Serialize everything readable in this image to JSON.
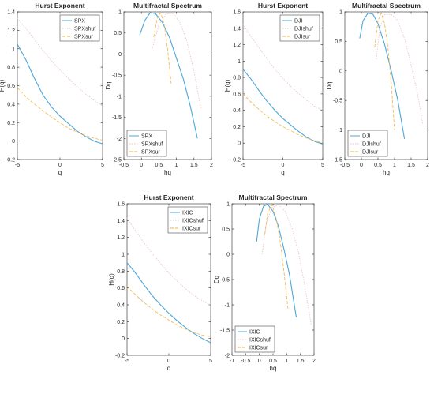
{
  "chart_data": [
    {
      "type": "line",
      "title": "Hurst Exponent",
      "xlabel": "q",
      "ylabel": "H(q)",
      "xlim": [
        -5,
        5
      ],
      "ylim": [
        -0.2,
        1.4
      ],
      "xticks": [
        "-5",
        "0",
        "5"
      ],
      "yticks": [
        "-0.2",
        "0",
        "0.2",
        "0.4",
        "0.6",
        "0.8",
        "1",
        "1.2",
        "1.4"
      ],
      "legend": "top-right",
      "series": [
        {
          "name": "SPX",
          "color": "#4da6d9",
          "x": [
            -5,
            -4,
            -3,
            -2,
            -1,
            0,
            1,
            2,
            3,
            4,
            5
          ],
          "y": [
            1.05,
            0.88,
            0.68,
            0.5,
            0.37,
            0.27,
            0.19,
            0.11,
            0.05,
            0.0,
            -0.03
          ]
        },
        {
          "name": "SPXshuf",
          "color": "#e8c0c0",
          "x": [
            -5,
            -4,
            -3,
            -2,
            -1,
            0,
            1,
            2,
            3,
            4,
            5
          ],
          "y": [
            1.33,
            1.22,
            1.1,
            0.98,
            0.87,
            0.77,
            0.68,
            0.59,
            0.51,
            0.44,
            0.38
          ]
        },
        {
          "name": "SPXsur",
          "color": "#f5b342",
          "x": [
            -5,
            -4,
            -3,
            -2,
            -1,
            0,
            1,
            2,
            3,
            4,
            5
          ],
          "y": [
            0.58,
            0.48,
            0.4,
            0.33,
            0.26,
            0.2,
            0.14,
            0.1,
            0.06,
            0.03,
            0.01
          ]
        }
      ]
    },
    {
      "type": "line",
      "title": "Multifractal Spectrum",
      "xlabel": "hq",
      "ylabel": "Dq",
      "xlim": [
        -0.5,
        2
      ],
      "ylim": [
        -2.5,
        1
      ],
      "xticks": [
        "-0.5",
        "0",
        "0.5",
        "1",
        "1.5",
        "2"
      ],
      "yticks": [
        "-2.5",
        "-2",
        "-1.5",
        "-1",
        "-0.5",
        "0",
        "0.5",
        "1"
      ],
      "legend": "bottom-left",
      "series": [
        {
          "name": "SPX",
          "color": "#4da6d9",
          "x": [
            -0.05,
            0.1,
            0.25,
            0.4,
            0.6,
            0.8,
            1.0,
            1.2,
            1.4,
            1.6
          ],
          "y": [
            0.45,
            0.8,
            0.98,
            0.96,
            0.75,
            0.4,
            -0.1,
            -0.6,
            -1.25,
            -2.0
          ]
        },
        {
          "name": "SPXshuf",
          "color": "#e8c0c0",
          "x": [
            0.3,
            0.5,
            0.7,
            0.9,
            1.1,
            1.3,
            1.5,
            1.7
          ],
          "y": [
            0.1,
            0.7,
            0.95,
            0.96,
            0.75,
            0.3,
            -0.4,
            -1.3
          ]
        },
        {
          "name": "SPXsur",
          "color": "#f5b342",
          "x": [
            0.35,
            0.45,
            0.55,
            0.65,
            0.75,
            0.85
          ],
          "y": [
            0.4,
            0.85,
            0.98,
            0.7,
            0.1,
            -0.7
          ]
        }
      ]
    },
    {
      "type": "line",
      "title": "Hurst Exponent",
      "xlabel": "q",
      "ylabel": "H(q)",
      "xlim": [
        -5,
        5
      ],
      "ylim": [
        -0.2,
        1.6
      ],
      "xticks": [
        "-5",
        "0",
        "5"
      ],
      "yticks": [
        "-0.2",
        "0",
        "0.2",
        "0.4",
        "0.6",
        "0.8",
        "1",
        "1.2",
        "1.4",
        "1.6"
      ],
      "legend": "top-right",
      "series": [
        {
          "name": "DJI",
          "color": "#4da6d9",
          "x": [
            -5,
            -4,
            -3,
            -2,
            -1,
            0,
            1,
            2,
            3,
            4,
            5
          ],
          "y": [
            0.9,
            0.78,
            0.64,
            0.51,
            0.4,
            0.3,
            0.22,
            0.14,
            0.07,
            0.02,
            -0.01
          ]
        },
        {
          "name": "DJIshuf",
          "color": "#e8c0c0",
          "x": [
            -5,
            -4,
            -3,
            -2,
            -1,
            0,
            1,
            2,
            3,
            4,
            5
          ],
          "y": [
            1.45,
            1.3,
            1.16,
            1.03,
            0.9,
            0.79,
            0.69,
            0.6,
            0.52,
            0.45,
            0.4
          ]
        },
        {
          "name": "DJIsur",
          "color": "#f5b342",
          "x": [
            -5,
            -4,
            -3,
            -2,
            -1,
            0,
            1,
            2,
            3,
            4,
            5
          ],
          "y": [
            0.6,
            0.5,
            0.41,
            0.33,
            0.26,
            0.2,
            0.15,
            0.1,
            0.06,
            0.03,
            0.0
          ]
        }
      ]
    },
    {
      "type": "line",
      "title": "Multifractal Spectrum",
      "xlabel": "hq",
      "ylabel": "Dq",
      "xlim": [
        -0.5,
        2
      ],
      "ylim": [
        -1.5,
        1
      ],
      "xticks": [
        "-0.5",
        "0",
        "0.5",
        "1",
        "1.5",
        "2"
      ],
      "yticks": [
        "-1.5",
        "-1",
        "-0.5",
        "0",
        "0.5",
        "1"
      ],
      "legend": "bottom-left",
      "series": [
        {
          "name": "DJI",
          "color": "#4da6d9",
          "x": [
            -0.05,
            0.05,
            0.2,
            0.35,
            0.5,
            0.7,
            0.9,
            1.1,
            1.3
          ],
          "y": [
            0.55,
            0.85,
            0.98,
            0.96,
            0.8,
            0.45,
            0.0,
            -0.5,
            -1.15
          ]
        },
        {
          "name": "DJIshuf",
          "color": "#e8c0c0",
          "x": [
            0.45,
            0.55,
            0.7,
            0.9,
            1.1,
            1.3,
            1.5,
            1.7,
            1.85
          ],
          "y": [
            0.2,
            0.7,
            0.95,
            0.96,
            0.85,
            0.55,
            0.1,
            -0.4,
            -0.9
          ]
        },
        {
          "name": "DJIsur",
          "color": "#f5b342",
          "x": [
            0.4,
            0.5,
            0.6,
            0.7,
            0.8,
            0.9,
            1.0
          ],
          "y": [
            0.4,
            0.85,
            0.98,
            0.8,
            0.4,
            -0.2,
            -1.0
          ]
        }
      ]
    },
    {
      "type": "line",
      "title": "Hurst Exponent",
      "xlabel": "q",
      "ylabel": "H(q)",
      "xlim": [
        -5,
        5
      ],
      "ylim": [
        -0.2,
        1.6
      ],
      "xticks": [
        "-5",
        "0",
        "5"
      ],
      "yticks": [
        "-0.2",
        "0",
        "0.2",
        "0.4",
        "0.6",
        "0.8",
        "1",
        "1.2",
        "1.4",
        "1.6"
      ],
      "legend": "top-right",
      "series": [
        {
          "name": "IXIC",
          "color": "#4da6d9",
          "x": [
            -5,
            -4,
            -3,
            -2,
            -1,
            0,
            1,
            2,
            3,
            4,
            5
          ],
          "y": [
            0.9,
            0.78,
            0.64,
            0.51,
            0.4,
            0.3,
            0.21,
            0.13,
            0.06,
            0.0,
            -0.05
          ]
        },
        {
          "name": "IXICshuf",
          "color": "#e8c0c0",
          "x": [
            -5,
            -4,
            -3,
            -2,
            -1,
            0,
            1,
            2,
            3,
            4,
            5
          ],
          "y": [
            1.43,
            1.28,
            1.14,
            1.01,
            0.89,
            0.78,
            0.68,
            0.59,
            0.51,
            0.45,
            0.4
          ]
        },
        {
          "name": "IXICsur",
          "color": "#f5b342",
          "x": [
            -5,
            -4,
            -3,
            -2,
            -1,
            0,
            1,
            2,
            3,
            4,
            5
          ],
          "y": [
            0.62,
            0.52,
            0.43,
            0.35,
            0.28,
            0.22,
            0.16,
            0.11,
            0.07,
            0.04,
            0.02
          ]
        }
      ]
    },
    {
      "type": "line",
      "title": "Multifractal Spectrum",
      "xlabel": "hq",
      "ylabel": "Dq",
      "xlim": [
        -1,
        2
      ],
      "ylim": [
        -2,
        1
      ],
      "xticks": [
        "-1",
        "-0.5",
        "0",
        "0.5",
        "1",
        "1.5",
        "2"
      ],
      "yticks": [
        "-2",
        "-1.5",
        "-1",
        "-0.5",
        "0",
        "0.5",
        "1"
      ],
      "legend": "bottom-left",
      "series": [
        {
          "name": "IXIC",
          "color": "#4da6d9",
          "x": [
            -0.1,
            0.0,
            0.15,
            0.3,
            0.5,
            0.7,
            0.9,
            1.1,
            1.35
          ],
          "y": [
            0.25,
            0.7,
            0.95,
            0.99,
            0.85,
            0.55,
            0.1,
            -0.4,
            -1.25
          ]
        },
        {
          "name": "IXICshuf",
          "color": "#e8c0c0",
          "x": [
            0.1,
            0.25,
            0.45,
            0.7,
            0.95,
            1.2,
            1.45,
            1.65,
            1.9
          ],
          "y": [
            0.0,
            0.6,
            0.92,
            0.98,
            0.85,
            0.5,
            0.0,
            -0.6,
            -1.4
          ]
        },
        {
          "name": "IXICsur",
          "color": "#f5b342",
          "x": [
            0.2,
            0.3,
            0.45,
            0.6,
            0.75,
            0.9,
            1.05
          ],
          "y": [
            0.4,
            0.8,
            0.98,
            0.75,
            0.3,
            -0.35,
            -1.1
          ]
        }
      ]
    }
  ]
}
